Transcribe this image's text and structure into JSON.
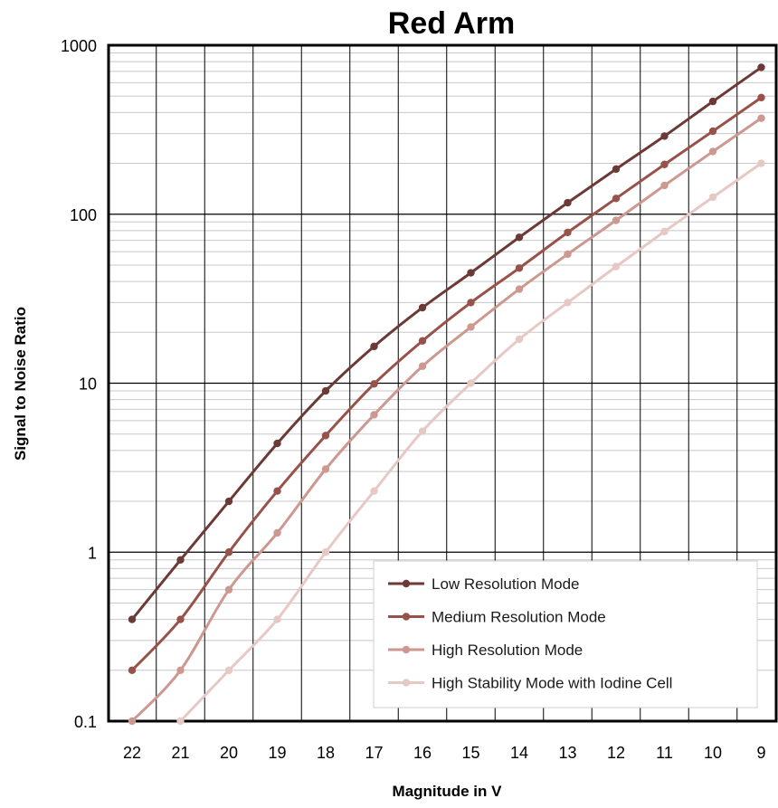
{
  "chart_data": {
    "type": "line",
    "title": "Red Arm",
    "xlabel": "Magnitude in V",
    "ylabel": "Signal to Noise Ratio",
    "x": [
      22,
      21,
      20,
      19,
      18,
      17,
      16,
      15,
      14,
      13,
      12,
      11,
      10,
      9
    ],
    "x_tick_labels": [
      "22",
      "21",
      "20",
      "19",
      "18",
      "17",
      "16",
      "15",
      "14",
      "13",
      "12",
      "11",
      "10",
      "9"
    ],
    "xlim": [
      22,
      9
    ],
    "x_reversed": true,
    "y_scale": "log",
    "ylim": [
      0.1,
      1000
    ],
    "y_tick_labels": [
      "0.1",
      "1",
      "10",
      "100",
      "1000"
    ],
    "y_ticks": [
      0.1,
      1,
      10,
      100,
      1000
    ],
    "grid": true,
    "legend_position": "bottom-right",
    "series": [
      {
        "name": "Low Resolution Mode",
        "color": "#6b3a36",
        "values": [
          0.4,
          0.9,
          2.0,
          4.4,
          9.0,
          16.5,
          28,
          45,
          73,
          117,
          185,
          290,
          465,
          740
        ]
      },
      {
        "name": "Medium Resolution Mode",
        "color": "#98524a",
        "values": [
          0.2,
          0.4,
          1.0,
          2.3,
          4.9,
          9.9,
          17.8,
          30,
          48,
          78,
          124,
          197,
          310,
          490
        ]
      },
      {
        "name": "High Resolution Mode",
        "color": "#cc9890",
        "values": [
          0.1,
          0.2,
          0.6,
          1.3,
          3.1,
          6.5,
          12.6,
          21.5,
          36,
          58,
          92,
          148,
          235,
          370
        ]
      },
      {
        "name": "High Stability Mode with Iodine Cell",
        "color": "#e6c8c4",
        "values": [
          null,
          0.1,
          0.2,
          0.4,
          1.0,
          2.3,
          5.2,
          10,
          18.2,
          30,
          49,
          79,
          126,
          200
        ]
      }
    ]
  }
}
